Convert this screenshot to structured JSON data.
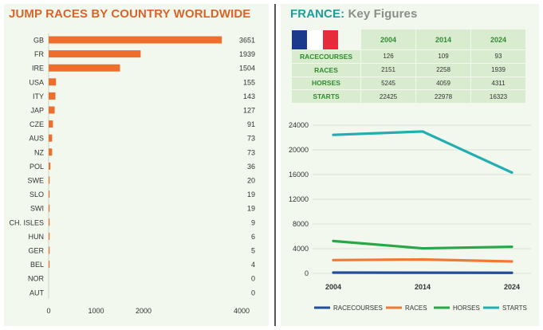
{
  "left": {
    "title": "JUMP RACES BY COUNTRY WORLDWIDE"
  },
  "right": {
    "title_main": "FRANCE:",
    "title_sub": "Key Figures",
    "flag_colors": [
      "#1a3a8c",
      "#ffffff",
      "#e52b3c"
    ],
    "table": {
      "years": [
        "2004",
        "2014",
        "2024"
      ],
      "rows": [
        {
          "label": "RACECOURSES",
          "values": [
            "126",
            "109",
            "93"
          ]
        },
        {
          "label": "RACES",
          "values": [
            "2151",
            "2258",
            "1939"
          ]
        },
        {
          "label": "HORSES",
          "values": [
            "5245",
            "4059",
            "4311"
          ]
        },
        {
          "label": "STARTS",
          "values": [
            "22425",
            "22978",
            "16323"
          ]
        }
      ]
    }
  },
  "chart_data": [
    {
      "type": "bar",
      "orientation": "horizontal",
      "title": "JUMP RACES BY COUNTRY WORLDWIDE",
      "categories": [
        "GB",
        "FR",
        "IRE",
        "USA",
        "ITY",
        "JAP",
        "CZE",
        "AUS",
        "NZ",
        "POL",
        "SWE",
        "SLO",
        "SWI",
        "CH. ISLES",
        "HUN",
        "GER",
        "BEL",
        "NOR",
        "AUT"
      ],
      "values": [
        3651,
        1939,
        1504,
        155,
        143,
        127,
        91,
        73,
        73,
        36,
        20,
        19,
        19,
        9,
        6,
        5,
        4,
        0,
        0
      ],
      "xlim": [
        0,
        4000
      ],
      "xticks": [
        "0",
        "1000",
        "2000",
        "4000"
      ],
      "bar_color": "#ee6f2d",
      "grid": false
    },
    {
      "type": "line",
      "x": [
        "2004",
        "2014",
        "2024"
      ],
      "series": [
        {
          "name": "RACECOURSES",
          "values": [
            126,
            109,
            93
          ],
          "color": "#1f4e9c"
        },
        {
          "name": "RACES",
          "values": [
            2151,
            2258,
            1939
          ],
          "color": "#ee7a35"
        },
        {
          "name": "HORSES",
          "values": [
            5245,
            4059,
            4311
          ],
          "color": "#28a745"
        },
        {
          "name": "STARTS",
          "values": [
            22425,
            22978,
            16323
          ],
          "color": "#22aeb0"
        }
      ],
      "ylim": [
        0,
        24000
      ],
      "yticks": [
        "0",
        "4000",
        "8000",
        "12000",
        "16000",
        "20000",
        "24000"
      ],
      "grid": true,
      "legend_position": "bottom"
    }
  ]
}
